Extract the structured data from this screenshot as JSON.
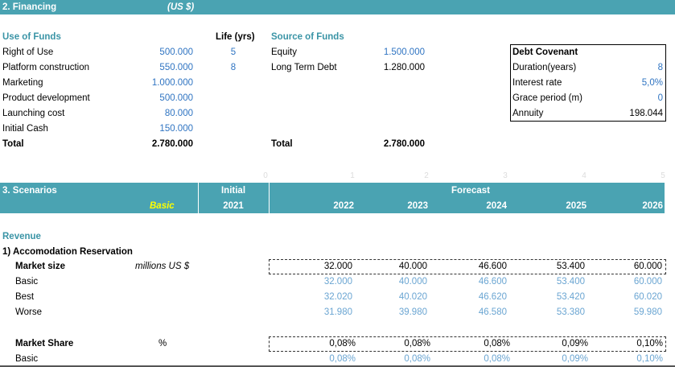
{
  "financing": {
    "title": "2. Financing",
    "currency": "(US $)",
    "use_header": "Use of Funds",
    "life_header": "Life (yrs)",
    "uses": [
      {
        "label": "Right of Use",
        "value": "500.000",
        "life": "5"
      },
      {
        "label": "Platform construction",
        "value": "550.000",
        "life": "8"
      },
      {
        "label": "Marketing",
        "value": "1.000.000",
        "life": ""
      },
      {
        "label": "Product development",
        "value": "500.000",
        "life": ""
      },
      {
        "label": "Launching cost",
        "value": "80.000",
        "life": ""
      },
      {
        "label": "Initial Cash",
        "value": "150.000",
        "life": ""
      }
    ],
    "uses_total_label": "Total",
    "uses_total": "2.780.000",
    "source_header": "Source of Funds",
    "sources": [
      {
        "label": "Equity",
        "value": "1.500.000"
      },
      {
        "label": "Long Term Debt",
        "value": "1.280.000"
      }
    ],
    "sources_total_label": "Total",
    "sources_total": "2.780.000",
    "covenant": {
      "title": "Debt Covenant",
      "rows": [
        {
          "label": "Duration(years)",
          "value": "8"
        },
        {
          "label": "Interest rate",
          "value": "5,0%"
        },
        {
          "label": "Grace period (m)",
          "value": "0"
        },
        {
          "label": "Annuity",
          "value": "198.044"
        }
      ]
    }
  },
  "period_index": [
    "0",
    "1",
    "2",
    "3",
    "4",
    "5"
  ],
  "scenarios": {
    "title": "3. Scenarios",
    "selected": "Basic",
    "initial_label": "Initial",
    "initial_year": "2021",
    "forecast_label": "Forecast",
    "years": [
      "2022",
      "2023",
      "2024",
      "2025",
      "2026"
    ]
  },
  "revenue": {
    "header": "Revenue",
    "sub_header": "1) Accomodation Reservation",
    "market_size": {
      "label": "Market size",
      "unit": "millions US $",
      "values": [
        "32.000",
        "40.000",
        "46.600",
        "53.400",
        "60.000"
      ],
      "rows": [
        {
          "label": "Basic",
          "values": [
            "32.000",
            "40.000",
            "46.600",
            "53.400",
            "60.000"
          ]
        },
        {
          "label": "Best",
          "values": [
            "32.020",
            "40.020",
            "46.620",
            "53.420",
            "60.020"
          ]
        },
        {
          "label": "Worse",
          "values": [
            "31.980",
            "39.980",
            "46.580",
            "53.380",
            "59.980"
          ]
        }
      ]
    },
    "market_share": {
      "label": "Market Share",
      "unit": "%",
      "values": [
        "0,08%",
        "0,08%",
        "0,08%",
        "0,09%",
        "0,10%"
      ],
      "rows": [
        {
          "label": "Basic",
          "values": [
            "0,08%",
            "0,08%",
            "0,08%",
            "0,09%",
            "0,10%"
          ]
        }
      ]
    }
  },
  "colors": {
    "band": "#4aa3b2",
    "teal_text": "#3a94a6",
    "value_blue": "#2f74c2",
    "scenario_blue": "#6aa5d2",
    "selected": "#ffff00"
  }
}
